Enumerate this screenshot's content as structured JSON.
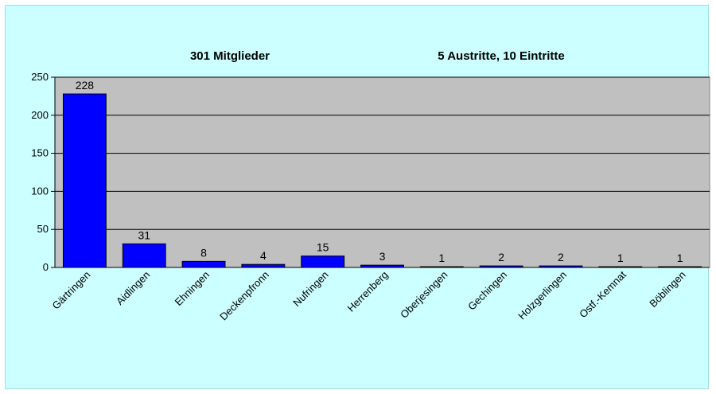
{
  "chart_data": {
    "type": "bar",
    "title": "301 Mitglieder",
    "subtitle": "5 Austritte, 10 Eintritte",
    "xlabel": "",
    "ylabel": "",
    "ylim": [
      0,
      250
    ],
    "yticks": [
      0,
      50,
      100,
      150,
      200,
      250
    ],
    "grid": true,
    "categories": [
      "Gärtringen",
      "Aidlingen",
      "Ehningen",
      "Deckenpfronn",
      "Nufringen",
      "Herrenberg",
      "Oberjesingen",
      "Gechingen",
      "Holzgerlingen",
      "Ostf.-Kemnat",
      "Böblingen"
    ],
    "values": [
      228,
      31,
      8,
      4,
      15,
      3,
      1,
      2,
      2,
      1,
      1
    ],
    "colors": {
      "bar": "#0000ff",
      "plot_bg": "#c0c0c0",
      "chart_bg": "#ccffff",
      "grid": "#000000"
    }
  }
}
